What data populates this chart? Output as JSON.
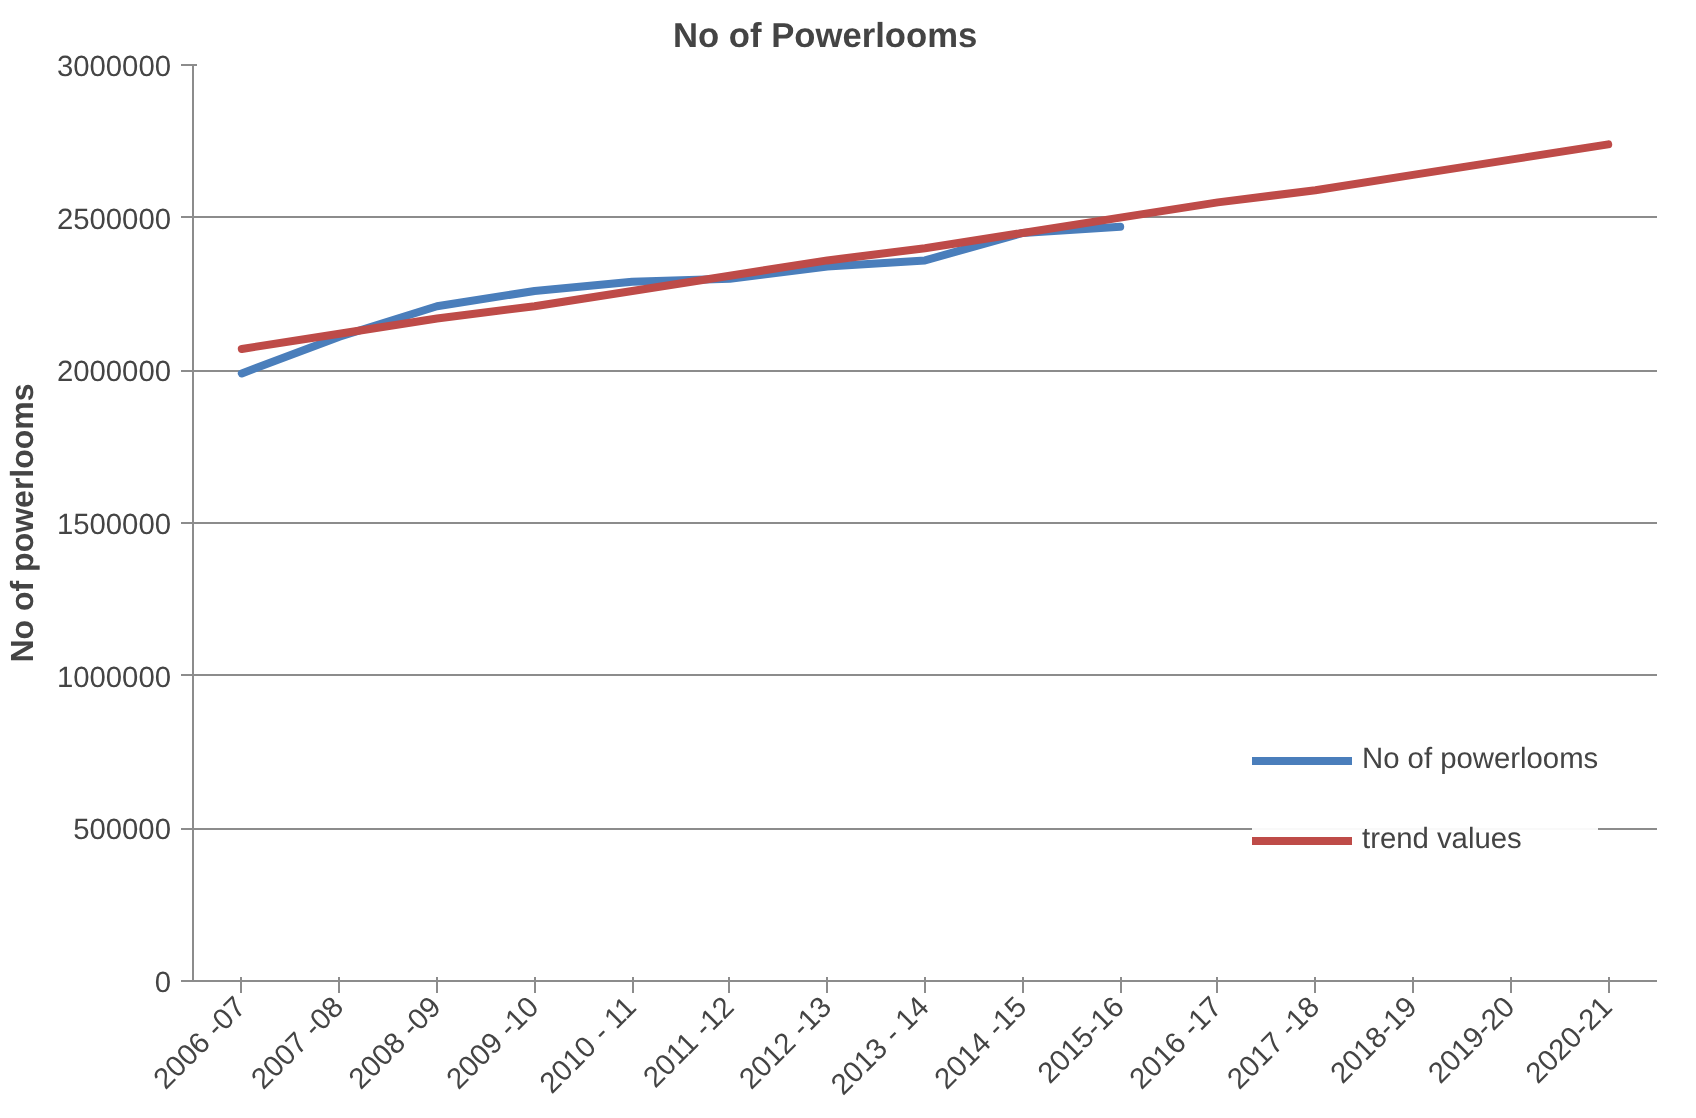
{
  "chart_data": {
    "type": "line",
    "title": "No of Powerlooms",
    "ylabel": "No of powerlooms",
    "categories": [
      "2006 -07",
      "2007 -08",
      "2008 -09",
      "2009 -10",
      "2010 - 11",
      "2011 -12",
      "2012 -13",
      "2013 - 14",
      "2014 -15",
      "2015-16",
      "2016 -17",
      "2017 -18",
      "2018-19",
      "2019-20",
      "2020-21"
    ],
    "series": [
      {
        "name": "No of powerlooms",
        "color": "#4a7ebb",
        "values": [
          1990000,
          2110000,
          2210000,
          2260000,
          2290000,
          2300000,
          2340000,
          2360000,
          2450000,
          2470000,
          null,
          null,
          null,
          null,
          null
        ]
      },
      {
        "name": "trend values",
        "color": "#be4b48",
        "values": [
          2070000,
          2120000,
          2170000,
          2210000,
          2260000,
          2310000,
          2360000,
          2400000,
          2450000,
          2500000,
          2550000,
          2590000,
          2640000,
          2690000,
          2740000
        ]
      }
    ],
    "ylim": [
      0,
      3000000
    ],
    "yticks": [
      0,
      500000,
      1000000,
      1500000,
      2000000,
      2500000,
      3000000
    ],
    "grid": "y",
    "legend": "right",
    "marker": "none",
    "line_style": "solid"
  }
}
